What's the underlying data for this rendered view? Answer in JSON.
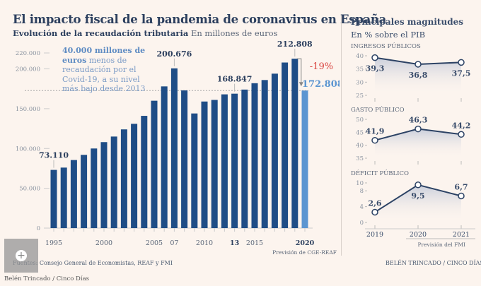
{
  "title": "El impacto fiscal de la pandemia de coronavirus en España",
  "subtitle_bold": "Evolución de la recaudación tributaria",
  "subtitle_unit": "En millones de euros",
  "annotation_bold": "40.000 millones de euros",
  "annotation_rest": " menos de recaudación por el Covid-19, a su nivel más bajo desde 2013",
  "change_label": "-19%",
  "forecast_note": "Previsión de CGE-REAF",
  "sources": "Fuentes: Consejo General de Economistas, REAF y FMI",
  "credit_right": "BELÉN TRINCADO / CINCO DÍAS",
  "credit_bottom": "Belén Trincado / Cinco Días",
  "colors": {
    "bar": "#1f4d86",
    "forecast": "#5b95d1",
    "negative": "#d9433f",
    "line": "#2c4264"
  },
  "chart_data": [
    {
      "type": "bar",
      "title": "Evolución de la recaudación tributaria",
      "ylabel": "En millones de euros",
      "ylim": [
        0,
        220000
      ],
      "yticks": [
        0,
        50000,
        100000,
        150000,
        200000,
        220000
      ],
      "ytick_labels": [
        "0",
        "50.000",
        "100.000",
        "150.000",
        "200.000",
        "220.000"
      ],
      "x": [
        1995,
        1996,
        1997,
        1998,
        1999,
        2000,
        2001,
        2002,
        2003,
        2004,
        2005,
        2006,
        2007,
        2008,
        2009,
        2010,
        2011,
        2012,
        2013,
        2014,
        2015,
        2016,
        2017,
        2018,
        2019,
        2020
      ],
      "xtick_labels": [
        {
          "year": 1995,
          "label": "1995"
        },
        {
          "year": 2000,
          "label": "2000"
        },
        {
          "year": 2005,
          "label": "2005"
        },
        {
          "year": 2007,
          "label": "07"
        },
        {
          "year": 2010,
          "label": "2010"
        },
        {
          "year": 2013,
          "label": "13",
          "bold": true
        },
        {
          "year": 2015,
          "label": "2015"
        },
        {
          "year": 2020,
          "label": "2020",
          "bold": true
        }
      ],
      "values": [
        73110,
        76000,
        85500,
        92000,
        100000,
        108000,
        115000,
        124000,
        131000,
        141000,
        160000,
        178000,
        200676,
        173000,
        144000,
        159000,
        161000,
        168000,
        168847,
        174000,
        182000,
        186000,
        194000,
        208000,
        212808,
        172808
      ],
      "forecast_index": 25,
      "data_labels": [
        {
          "year": 1995,
          "label": "73.110"
        },
        {
          "year": 2007,
          "label": "200.676"
        },
        {
          "year": 2013,
          "label": "168.847"
        },
        {
          "year": 2019,
          "label": "212.808"
        },
        {
          "year": 2020,
          "label": "172.808"
        }
      ]
    },
    {
      "type": "line",
      "title": "Principales magnitudes",
      "subtitle": "En % sobre el PIB",
      "x_labels": [
        "2019",
        "2020",
        "2021"
      ],
      "forecast_note": "Previsión del FMI",
      "panels": [
        {
          "name": "INGRESOS PÚBLICOS",
          "ylim": [
            25,
            40
          ],
          "yticks": [
            25,
            30,
            35,
            40
          ],
          "values": [
            39.3,
            36.8,
            37.5
          ],
          "labels": [
            "39,3",
            "36,8",
            "37,5"
          ],
          "label_pos": [
            "below",
            "below",
            "below"
          ]
        },
        {
          "name": "GASTO PÚBLICO",
          "ylim": [
            35,
            50
          ],
          "yticks": [
            35,
            40,
            45,
            50
          ],
          "values": [
            41.9,
            46.3,
            44.2
          ],
          "labels": [
            "41,9",
            "46,3",
            "44,2"
          ],
          "label_pos": [
            "above",
            "above",
            "above"
          ]
        },
        {
          "name": "DÉFICIT PÚBLICO",
          "ylim": [
            0,
            10
          ],
          "yticks": [
            0,
            4,
            8,
            10
          ],
          "values": [
            2.6,
            9.5,
            6.7
          ],
          "labels": [
            "2,6",
            "9,5",
            "6,7"
          ],
          "label_pos": [
            "above",
            "below",
            "above"
          ]
        }
      ]
    }
  ]
}
